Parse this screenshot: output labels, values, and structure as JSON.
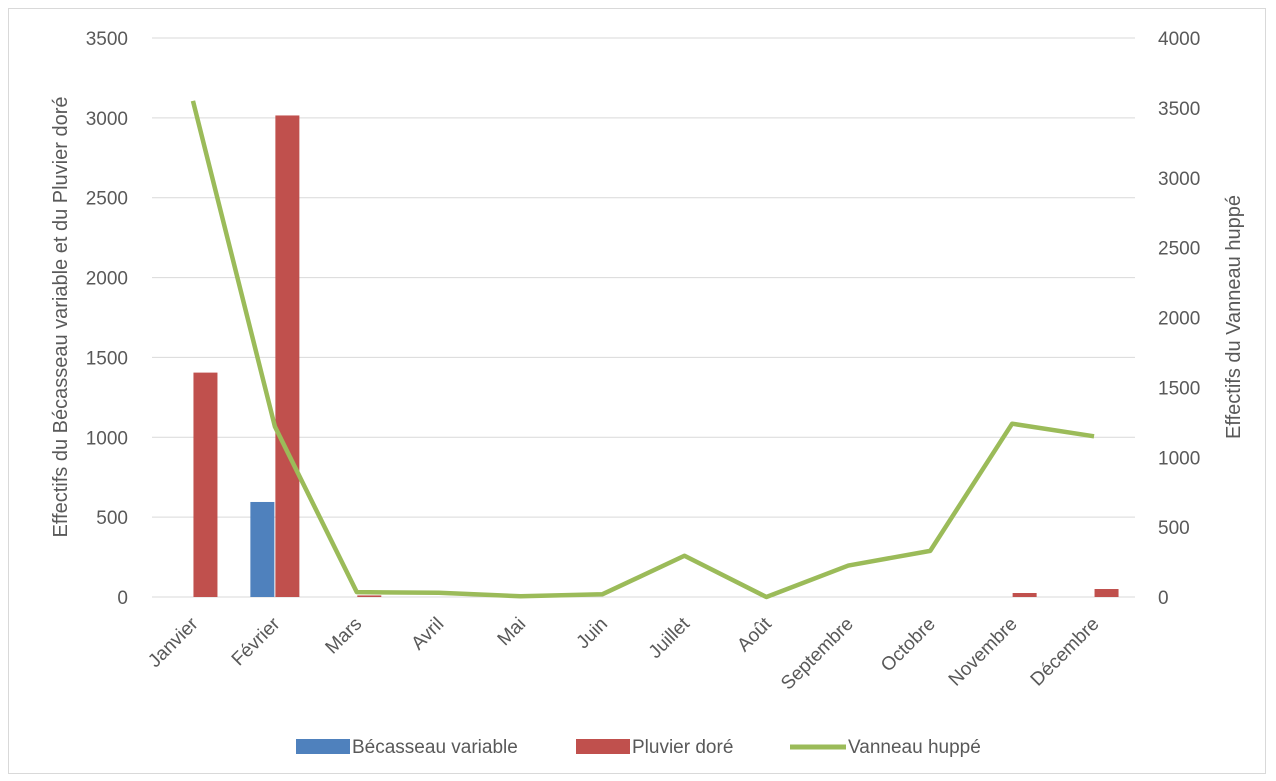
{
  "chart_data": {
    "type": "bar",
    "categories": [
      "Janvier",
      "Février",
      "Mars",
      "Avril",
      "Mai",
      "Juin",
      "Juillet",
      "Août",
      "Septembre",
      "Octobre",
      "Novembre",
      "Décembre"
    ],
    "series": [
      {
        "name": "Bécasseau variable",
        "type": "bar",
        "axis": "left",
        "color": "#4f81bd",
        "values": [
          0,
          595,
          0,
          0,
          0,
          0,
          0,
          0,
          0,
          0,
          0,
          0
        ]
      },
      {
        "name": "Pluvier doré",
        "type": "bar",
        "axis": "left",
        "color": "#c0504d",
        "values": [
          1405,
          3015,
          10,
          0,
          0,
          0,
          0,
          0,
          0,
          0,
          25,
          50
        ]
      },
      {
        "name": "Vanneau huppé",
        "type": "line",
        "axis": "right",
        "color": "#9bbb59",
        "values": [
          3550,
          1220,
          35,
          30,
          5,
          20,
          295,
          0,
          225,
          330,
          1240,
          1150
        ]
      }
    ],
    "ylabel": "Effectifs du Bécasseau variable et du Pluvier doré",
    "y2label": "Effectifs du Vanneau huppé",
    "ylim": [
      0,
      3500
    ],
    "y2lim": [
      0,
      4000
    ],
    "yticks": [
      "0",
      "500",
      "1000",
      "1500",
      "2000",
      "2500",
      "3000",
      "3500"
    ],
    "y2ticks": [
      "0",
      "500",
      "1000",
      "1500",
      "2000",
      "2500",
      "3000",
      "3500",
      "4000"
    ],
    "grid": true,
    "legend_position": "bottom"
  }
}
